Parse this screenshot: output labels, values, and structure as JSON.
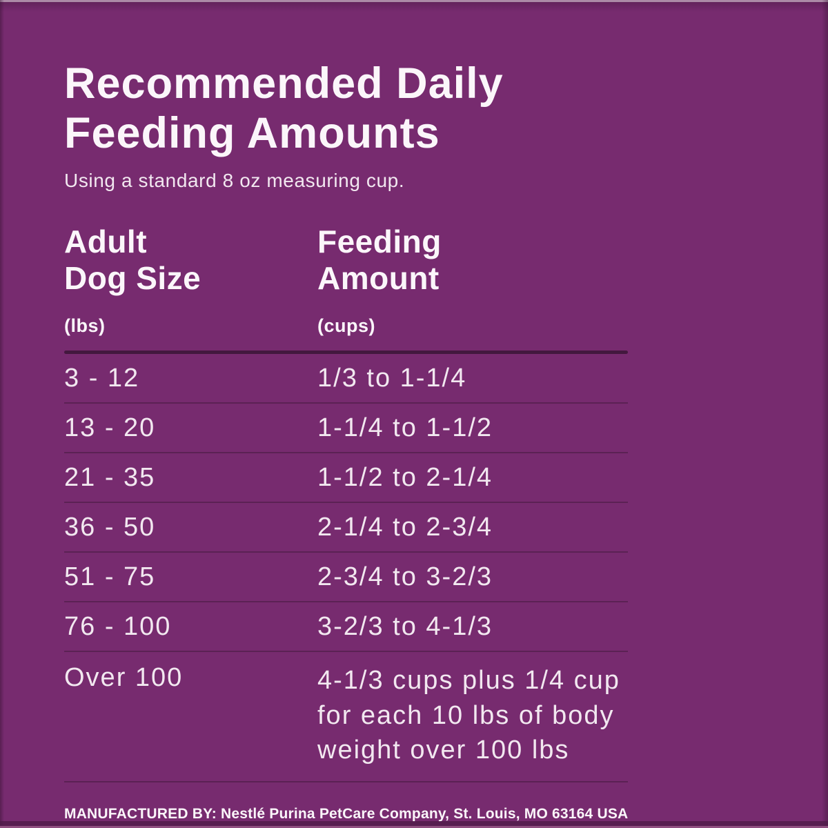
{
  "colors": {
    "background": "#772b6f",
    "text_bright": "#fbf6fa",
    "text_soft": "#f2e8f0",
    "divider": "#5b2154",
    "divider_heavy": "#43183e"
  },
  "header": {
    "title_line1": "Recommended Daily",
    "title_line2": "Feeding Amounts",
    "subtitle": "Using a standard 8 oz measuring cup."
  },
  "table": {
    "col1": {
      "label_line1": "Adult",
      "label_line2": "Dog Size",
      "unit": "(lbs)"
    },
    "col2": {
      "label_line1": "Feeding",
      "label_line2": "Amount",
      "unit": "(cups)"
    },
    "rows": [
      {
        "size": "3 - 12",
        "amount": "1/3 to 1-1/4"
      },
      {
        "size": "13 - 20",
        "amount": "1-1/4 to 1-1/2"
      },
      {
        "size": "21 - 35",
        "amount": "1-1/2 to 2-1/4"
      },
      {
        "size": "36 - 50",
        "amount": "2-1/4 to 2-3/4"
      },
      {
        "size": "51 - 75",
        "amount": "2-3/4 to 3-2/3"
      },
      {
        "size": "76 - 100",
        "amount": "3-2/3 to 4-1/3"
      },
      {
        "size": "Over 100",
        "amount": "4-1/3 cups plus 1/4 cup for each 10 lbs of body weight over 100 lbs"
      }
    ]
  },
  "footer": {
    "manufacturer": "MANUFACTURED BY: Nestlé Purina PetCare Company, St. Louis, MO 63164 USA"
  }
}
